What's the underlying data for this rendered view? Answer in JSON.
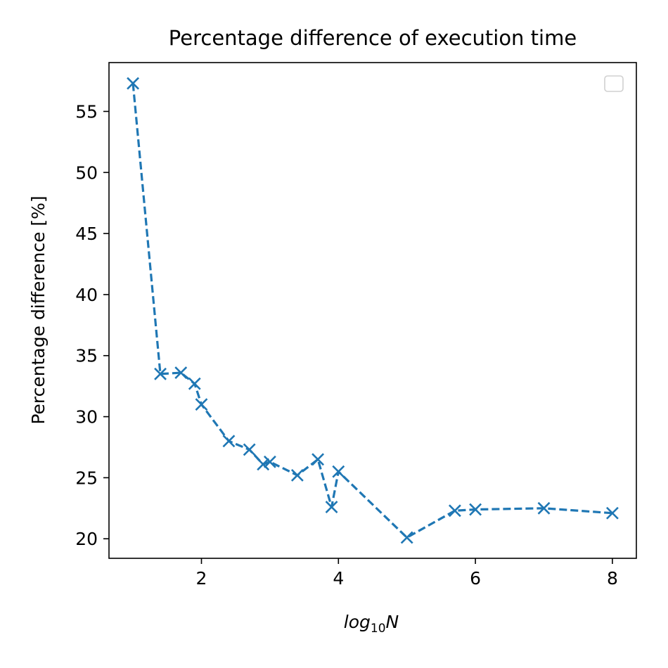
{
  "chart_data": {
    "type": "line",
    "title": "Percentage difference of execution time",
    "xlabel_base": "log",
    "xlabel_sub": "10",
    "xlabel_var": "N",
    "ylabel": "Percentage difference [%]",
    "xlim": [
      0.65,
      8.35
    ],
    "ylim": [
      18.4,
      59.0
    ],
    "xticks": [
      2,
      4,
      6,
      8
    ],
    "yticks": [
      20,
      25,
      30,
      35,
      40,
      45,
      50,
      55
    ],
    "grid": false,
    "legend": "top-right (empty)",
    "series": [
      {
        "color": "#1f77b4",
        "line_style": "dashed",
        "marker": "x",
        "x": [
          1.0,
          1.4,
          1.7,
          1.9,
          2.0,
          2.4,
          2.7,
          2.9,
          3.0,
          3.4,
          3.7,
          3.9,
          4.0,
          5.0,
          5.7,
          6.0,
          7.0,
          8.0
        ],
        "y": [
          57.3,
          33.5,
          33.6,
          32.7,
          31.0,
          28.0,
          27.3,
          26.1,
          26.3,
          25.2,
          26.5,
          22.6,
          25.5,
          20.1,
          22.3,
          22.4,
          22.5,
          22.1
        ]
      }
    ]
  }
}
